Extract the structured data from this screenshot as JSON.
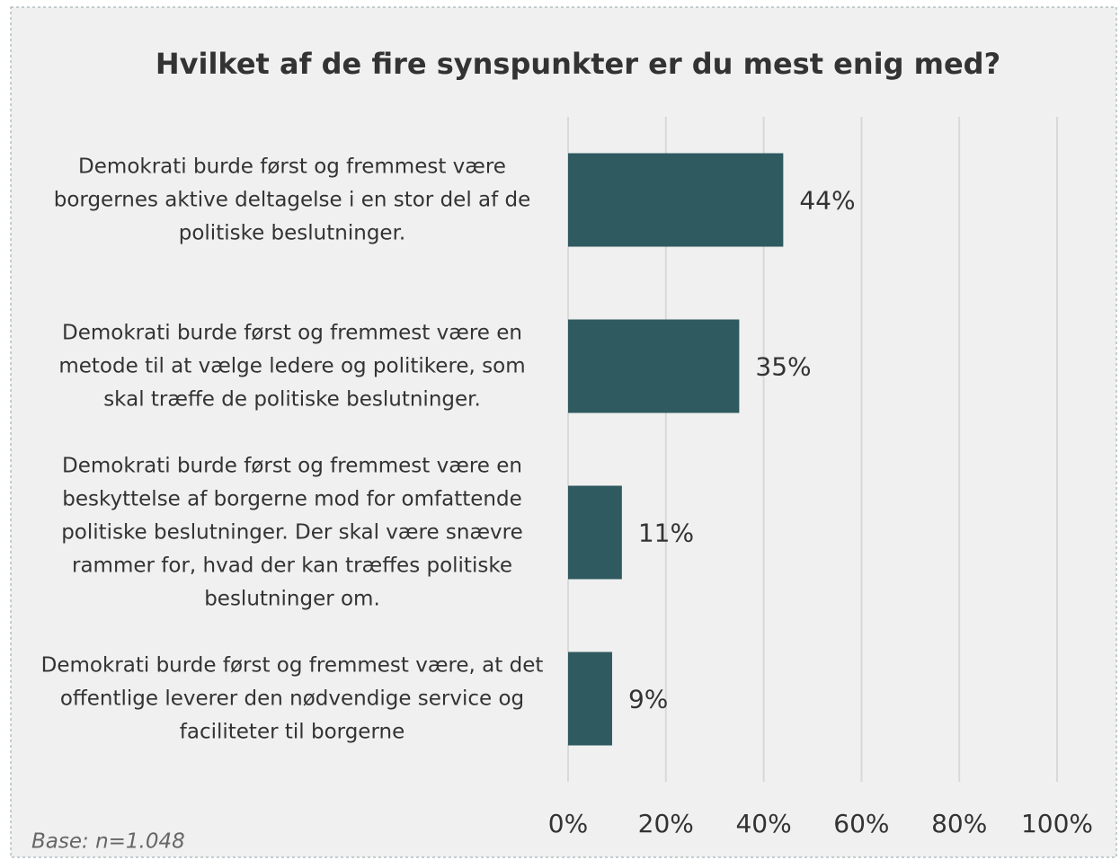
{
  "chart_data": {
    "type": "bar",
    "orientation": "horizontal",
    "title": "Hvilket af de fire synspunkter er du mest enig med?",
    "categories": [
      "Demokrati burde først og fremmest være borgernes aktive deltagelse i en stor del af de politiske beslutninger.",
      "Demokrati burde først og fremmest være en metode til at vælge ledere og politikere, som skal træffe de politiske beslutninger.",
      "Demokrati burde først og fremmest være en beskyttelse af borgerne mod for omfattende politiske beslutninger. Der skal være snævre rammer for, hvad der kan træffes politiske beslutninger om.",
      "Demokrati burde først og fremmest være, at det offentlige leverer den nødvendige service og faciliteter til borgerne"
    ],
    "values": [
      44,
      35,
      11,
      9
    ],
    "value_labels": [
      "44%",
      "35%",
      "11%",
      "9%"
    ],
    "color": "#2f5a60",
    "xlim": [
      0,
      100
    ],
    "xticks": [
      {
        "value": 0,
        "label": "0%"
      },
      {
        "value": 20,
        "label": "20%"
      },
      {
        "value": 40,
        "label": "40%"
      },
      {
        "value": 60,
        "label": "60%"
      },
      {
        "value": 80,
        "label": "80%"
      },
      {
        "value": 100,
        "label": "100%"
      }
    ],
    "grid": true,
    "note": "Base: n=1.048"
  }
}
